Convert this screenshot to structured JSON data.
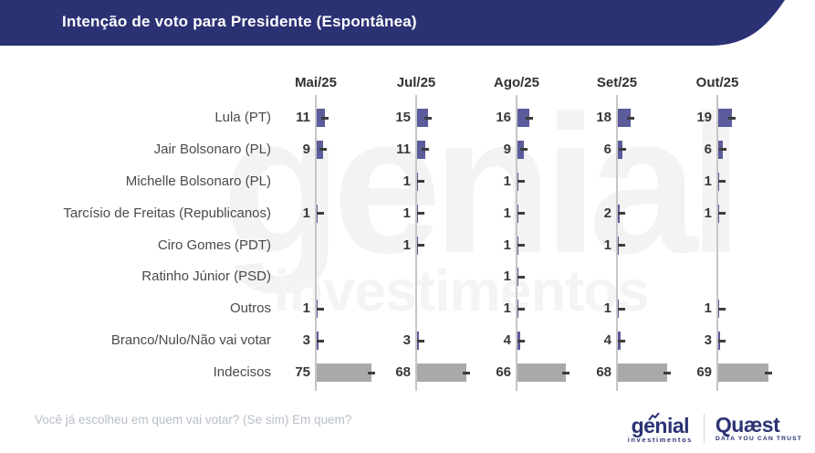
{
  "header": {
    "title": "Intenção de voto para Presidente (Espontânea)"
  },
  "chart_data": {
    "type": "bar",
    "orientation": "horizontal",
    "title": "Intenção de voto para Presidente (Espontânea)",
    "categories": [
      "Mai/25",
      "Jul/25",
      "Ago/25",
      "Set/25",
      "Out/25"
    ],
    "series": [
      {
        "name": "Lula (PT)",
        "values": [
          11,
          15,
          16,
          18,
          19
        ]
      },
      {
        "name": "Jair Bolsonaro (PL)",
        "values": [
          9,
          11,
          9,
          6,
          6
        ]
      },
      {
        "name": "Michelle Bolsonaro (PL)",
        "values": [
          null,
          1,
          1,
          null,
          1
        ]
      },
      {
        "name": "Tarcísio de Freitas (Republicanos)",
        "values": [
          1,
          1,
          1,
          2,
          1
        ]
      },
      {
        "name": "Ciro Gomes (PDT)",
        "values": [
          null,
          1,
          1,
          1,
          null
        ]
      },
      {
        "name": "Ratinho Júnior (PSD)",
        "values": [
          null,
          null,
          1,
          null,
          null
        ]
      },
      {
        "name": "Outros",
        "values": [
          1,
          null,
          1,
          1,
          1
        ]
      },
      {
        "name": "Branco/Nulo/Não vai votar",
        "values": [
          3,
          3,
          4,
          4,
          3
        ]
      },
      {
        "name": "Indecisos",
        "values": [
          75,
          68,
          66,
          68,
          69
        ]
      }
    ],
    "bar_colors": {
      "default": "#5c5b9b",
      "Indecisos": "#a9a9a9"
    },
    "legend": "none",
    "grid": "vertical-month-axes"
  },
  "watermark": {
    "line1": "genial",
    "line2": "investimentos"
  },
  "footer": {
    "question": "Você já escolheu em quem vai votar? (Se sim) Em quem?"
  },
  "logos": {
    "genial": {
      "name": "genial",
      "sub": "investimentos"
    },
    "quaest": {
      "name": "Quæst",
      "tagline": "DATA YOU CAN TRUST"
    }
  },
  "colors": {
    "navy": "#2b3274",
    "bar_candidate": "#5c5b9b",
    "bar_undecided": "#a9a9a9",
    "axis_line": "#c6c6c6",
    "end_marker": "#3d3d3d"
  }
}
